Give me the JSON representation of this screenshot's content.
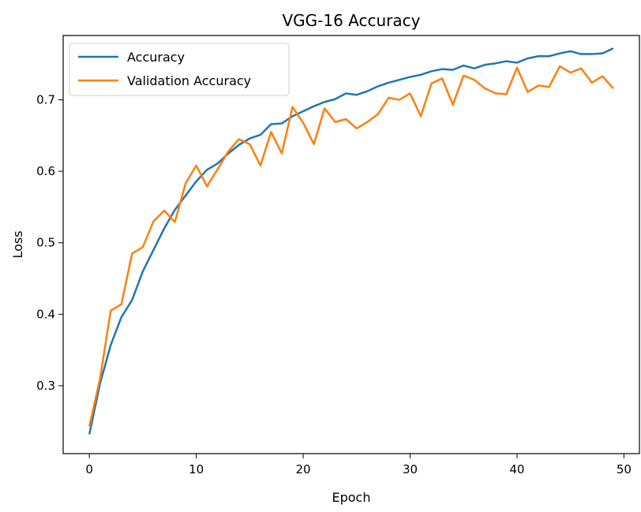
{
  "chart_data": {
    "type": "line",
    "title": "VGG-16 Accuracy",
    "xlabel": "Epoch",
    "ylabel": "Loss",
    "xlim": [
      -2.45,
      51.45
    ],
    "ylim": [
      0.205,
      0.79
    ],
    "x_ticks": [
      0,
      10,
      20,
      30,
      40,
      50
    ],
    "y_ticks": [
      0.3,
      0.4,
      0.5,
      0.6,
      0.7
    ],
    "grid": false,
    "legend_position": "upper-left",
    "x": [
      0,
      1,
      2,
      3,
      4,
      5,
      6,
      7,
      8,
      9,
      10,
      11,
      12,
      13,
      14,
      15,
      16,
      17,
      18,
      19,
      20,
      21,
      22,
      23,
      24,
      25,
      26,
      27,
      28,
      29,
      30,
      31,
      32,
      33,
      34,
      35,
      36,
      37,
      38,
      39,
      40,
      41,
      42,
      43,
      44,
      45,
      46,
      47,
      48,
      49
    ],
    "series": [
      {
        "name": "Accuracy",
        "color": "#1f77b4",
        "values": [
          0.232,
          0.303,
          0.357,
          0.396,
          0.42,
          0.46,
          0.49,
          0.52,
          0.546,
          0.566,
          0.586,
          0.602,
          0.611,
          0.625,
          0.637,
          0.646,
          0.651,
          0.666,
          0.667,
          0.677,
          0.684,
          0.691,
          0.697,
          0.701,
          0.709,
          0.707,
          0.712,
          0.719,
          0.724,
          0.728,
          0.732,
          0.735,
          0.74,
          0.743,
          0.742,
          0.748,
          0.744,
          0.749,
          0.751,
          0.754,
          0.752,
          0.758,
          0.761,
          0.761,
          0.765,
          0.768,
          0.764,
          0.764,
          0.765,
          0.772
        ]
      },
      {
        "name": "Validation Accuracy",
        "color": "#ff7f0e",
        "values": [
          0.243,
          0.31,
          0.405,
          0.414,
          0.485,
          0.494,
          0.53,
          0.545,
          0.529,
          0.583,
          0.608,
          0.579,
          0.603,
          0.628,
          0.645,
          0.638,
          0.608,
          0.655,
          0.625,
          0.69,
          0.668,
          0.638,
          0.688,
          0.669,
          0.673,
          0.66,
          0.669,
          0.68,
          0.703,
          0.7,
          0.709,
          0.677,
          0.723,
          0.73,
          0.693,
          0.734,
          0.728,
          0.716,
          0.709,
          0.708,
          0.745,
          0.711,
          0.72,
          0.718,
          0.747,
          0.738,
          0.744,
          0.724,
          0.733,
          0.716
        ]
      }
    ]
  }
}
